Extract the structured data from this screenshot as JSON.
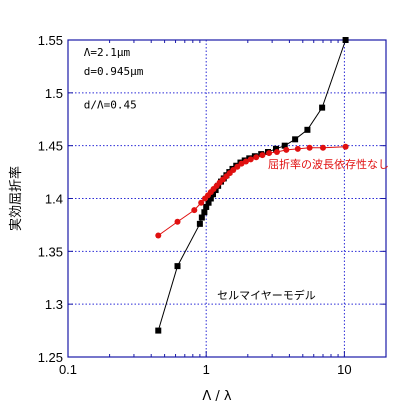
{
  "chart_data": {
    "type": "scatter",
    "x_scale": "log",
    "xlim": [
      0.1,
      20
    ],
    "ylim": [
      1.25,
      1.55
    ],
    "xlabel": "Λ / λ",
    "ylabel": "実効屈折率",
    "x_ticks": [
      {
        "value": 0.1,
        "label": "0.1"
      },
      {
        "value": 1,
        "label": "1"
      },
      {
        "value": 10,
        "label": "10"
      }
    ],
    "y_ticks": [
      {
        "value": 1.25,
        "label": "1.25"
      },
      {
        "value": 1.3,
        "label": "1.3"
      },
      {
        "value": 1.35,
        "label": "1.35"
      },
      {
        "value": 1.4,
        "label": "1.4"
      },
      {
        "value": 1.45,
        "label": "1.45"
      },
      {
        "value": 1.5,
        "label": "1.5"
      },
      {
        "value": 1.55,
        "label": "1.55"
      }
    ],
    "grid": true,
    "grid_color": "#2b2bd6",
    "frame_color": "#1a1aa8",
    "annotations": [
      {
        "text": "Λ=2.1μm",
        "x": 0.13,
        "y": 1.535
      },
      {
        "text": "d=0.945μm",
        "x": 0.13,
        "y": 1.517
      },
      {
        "text": "d/Λ=0.45",
        "x": 0.13,
        "y": 1.485
      }
    ],
    "series": [
      {
        "name": "セルマイヤーモデル",
        "color": "#000000",
        "marker": "square",
        "label_pos": {
          "x": 1.2,
          "y": 1.305
        },
        "points": [
          [
            0.45,
            1.275
          ],
          [
            0.62,
            1.336
          ],
          [
            0.9,
            1.376
          ],
          [
            0.93,
            1.382
          ],
          [
            0.97,
            1.387
          ],
          [
            1.0,
            1.392
          ],
          [
            1.04,
            1.396
          ],
          [
            1.08,
            1.4
          ],
          [
            1.12,
            1.404
          ],
          [
            1.17,
            1.408
          ],
          [
            1.22,
            1.412
          ],
          [
            1.28,
            1.416
          ],
          [
            1.34,
            1.419
          ],
          [
            1.4,
            1.422
          ],
          [
            1.47,
            1.425
          ],
          [
            1.55,
            1.428
          ],
          [
            1.65,
            1.431
          ],
          [
            1.77,
            1.434
          ],
          [
            1.9,
            1.436
          ],
          [
            2.05,
            1.438
          ],
          [
            2.25,
            1.44
          ],
          [
            2.5,
            1.442
          ],
          [
            2.8,
            1.444
          ],
          [
            3.2,
            1.447
          ],
          [
            3.7,
            1.45
          ],
          [
            4.4,
            1.456
          ],
          [
            5.4,
            1.465
          ],
          [
            6.9,
            1.486
          ],
          [
            10.2,
            1.55
          ]
        ]
      },
      {
        "name": "屈折率の波長依存性なし",
        "color": "#e01010",
        "marker": "circle",
        "label_pos": {
          "x": 2.8,
          "y": 1.429
        },
        "points": [
          [
            0.45,
            1.365
          ],
          [
            0.62,
            1.378
          ],
          [
            0.82,
            1.389
          ],
          [
            0.92,
            1.396
          ],
          [
            0.98,
            1.4
          ],
          [
            1.03,
            1.403
          ],
          [
            1.08,
            1.406
          ],
          [
            1.13,
            1.409
          ],
          [
            1.19,
            1.412
          ],
          [
            1.25,
            1.415
          ],
          [
            1.32,
            1.418
          ],
          [
            1.4,
            1.421
          ],
          [
            1.48,
            1.424
          ],
          [
            1.57,
            1.427
          ],
          [
            1.68,
            1.43
          ],
          [
            1.8,
            1.433
          ],
          [
            1.94,
            1.435
          ],
          [
            2.1,
            1.437
          ],
          [
            2.3,
            1.439
          ],
          [
            2.55,
            1.441
          ],
          [
            2.85,
            1.443
          ],
          [
            3.25,
            1.444
          ],
          [
            3.8,
            1.446
          ],
          [
            4.6,
            1.447
          ],
          [
            5.6,
            1.448
          ],
          [
            7.0,
            1.448
          ],
          [
            10.2,
            1.449
          ]
        ]
      }
    ]
  }
}
